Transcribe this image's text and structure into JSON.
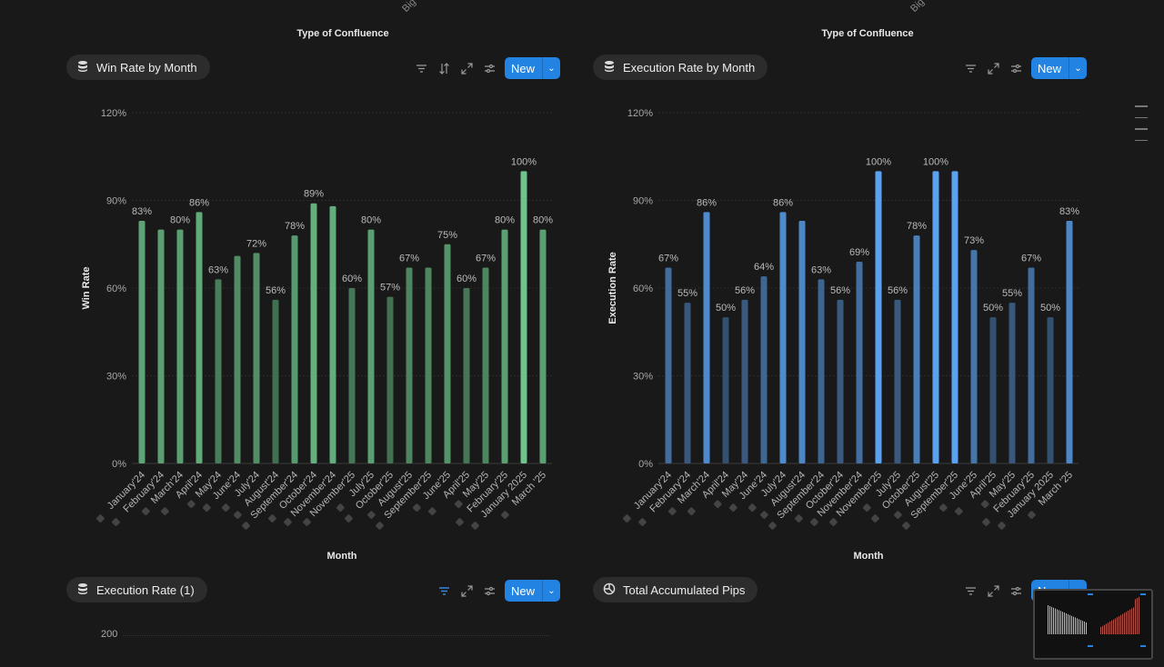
{
  "top": {
    "cut_label": "Big",
    "xaxis_title": "Type of Confluence"
  },
  "panels": [
    {
      "title": "Win Rate by Month",
      "icon": "database-icon",
      "tools": [
        "filter",
        "sort",
        "expand",
        "settings"
      ],
      "new_label": "New"
    },
    {
      "title": "Execution Rate by Month",
      "icon": "database-icon",
      "tools": [
        "filter",
        "expand",
        "settings"
      ],
      "new_label": "New"
    },
    {
      "title": "Execution Rate (1)",
      "icon": "database-icon",
      "tools": [
        "filter-active",
        "expand",
        "settings"
      ],
      "new_label": "New",
      "ytick": "200"
    },
    {
      "title": "Total Accumulated Pips",
      "icon": "pie-chart-icon",
      "tools": [
        "filter",
        "expand",
        "settings"
      ],
      "new_label": "New"
    }
  ],
  "colors": {
    "accent": "#2383e2",
    "green": "#6fc48c",
    "blue": "#5aa2f0",
    "background": "#191919"
  },
  "chart_data": [
    {
      "type": "bar",
      "xlabel": "Month",
      "ylabel": "Win Rate",
      "ylim": [
        0,
        120
      ],
      "yticks": [
        "0%",
        "30%",
        "60%",
        "90%",
        "120%"
      ],
      "grid": true,
      "categories": [
        "January'24",
        "February'24",
        "March'24",
        "April'24",
        "May'24",
        "June'24",
        "July'24",
        "August'24",
        "September'24",
        "October'24",
        "November'24",
        "November'25",
        "July'25",
        "October'25",
        "August'25",
        "September'25",
        "June'25",
        "April'25",
        "May'25",
        "February'25",
        "January 2025",
        "March '25"
      ],
      "values": [
        83,
        80,
        80,
        86,
        63,
        71,
        72,
        56,
        78,
        89,
        88,
        60,
        80,
        57,
        67,
        67,
        75,
        60,
        67,
        80,
        100,
        80
      ],
      "labels": [
        "83%",
        "",
        "80%",
        "86%",
        "63%",
        "",
        "72%",
        "56%",
        "78%",
        "89%",
        "",
        "60%",
        "80%",
        "57%",
        "67%",
        "",
        "75%",
        "60%",
        "67%",
        "80%",
        "100%",
        "80%"
      ]
    },
    {
      "type": "bar",
      "xlabel": "Month",
      "ylabel": "Execution Rate",
      "ylim": [
        0,
        120
      ],
      "yticks": [
        "0%",
        "30%",
        "60%",
        "90%",
        "120%"
      ],
      "grid": true,
      "categories": [
        "January'24",
        "February'24",
        "March'24",
        "April'24",
        "May'24",
        "June'24",
        "July'24",
        "August'24",
        "September'24",
        "October'24",
        "November'24",
        "November'25",
        "July'25",
        "October'25",
        "August'25",
        "September'25",
        "June'25",
        "April'25",
        "May'25",
        "February'25",
        "January 2025",
        "March '25"
      ],
      "values": [
        67,
        55,
        86,
        50,
        56,
        64,
        86,
        83,
        63,
        56,
        69,
        100,
        56,
        78,
        100,
        100,
        73,
        50,
        55,
        67,
        50,
        83
      ],
      "labels": [
        "67%",
        "55%",
        "86%",
        "50%",
        "56%",
        "64%",
        "86%",
        "",
        "63%",
        "56%",
        "69%",
        "100%",
        "56%",
        "78%",
        "100%",
        "",
        "73%",
        "50%",
        "55%",
        "67%",
        "50%",
        "83%"
      ]
    }
  ]
}
